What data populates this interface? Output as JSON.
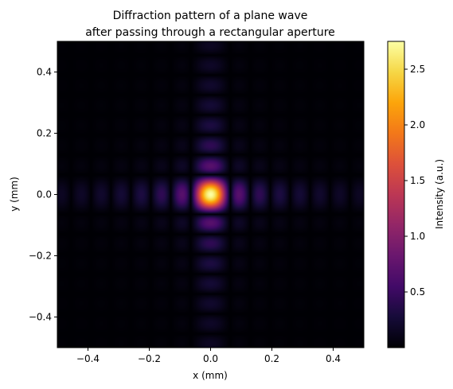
{
  "chart_data": {
    "type": "heatmap",
    "title": "Diffraction pattern of a plane wave",
    "subtitle": "after passing through a rectangular aperture",
    "xlabel": "x (mm)",
    "ylabel": "y (mm)",
    "xlim": [
      -0.5,
      0.5
    ],
    "ylim": [
      -0.5,
      0.5
    ],
    "x_ticks": [
      -0.4,
      -0.2,
      0.0,
      0.2,
      0.4
    ],
    "x_tick_labels": [
      "−0.4",
      "−0.2",
      "0.0",
      "0.2",
      "0.4"
    ],
    "y_ticks": [
      -0.4,
      -0.2,
      0.0,
      0.2,
      0.4
    ],
    "y_tick_labels": [
      "−0.4",
      "−0.2",
      "0.0",
      "0.2",
      "0.4"
    ],
    "colormap": "inferno",
    "colorbar": {
      "label": "Intensity (a.u.)",
      "range": [
        0.0,
        2.75
      ],
      "ticks": [
        0.5,
        1.0,
        1.5,
        2.0,
        2.5
      ],
      "tick_labels": [
        "0.5",
        "1.0",
        "1.5",
        "2.0",
        "2.5"
      ]
    },
    "pattern": {
      "peak_intensity": 2.75,
      "center": [
        0.0,
        0.0
      ],
      "sidelobe_spacing_x_mm": 0.065,
      "sidelobe_spacing_y_mm": 0.065
    },
    "grid": false
  }
}
